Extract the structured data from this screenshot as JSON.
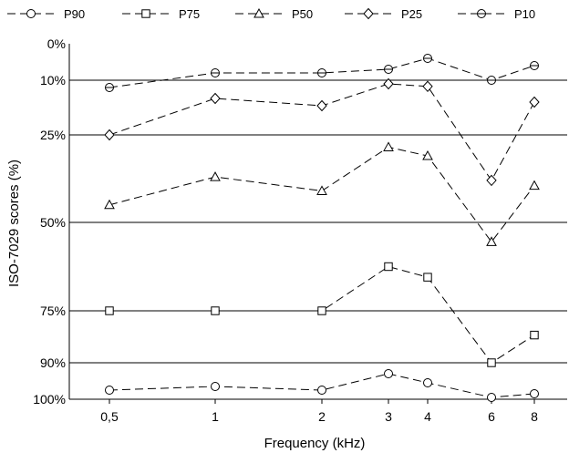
{
  "chart_data": {
    "type": "line",
    "xlabel": "Frequency (kHz)",
    "ylabel": "ISO-7029 scores (%)",
    "categories": [
      "0,5",
      "1",
      "2",
      "3",
      "4",
      "6",
      "8"
    ],
    "y_tick_labels": [
      "0%",
      "10%",
      "25%",
      "50%",
      "75%",
      "90%",
      "100%"
    ],
    "y_axis_note": "percentile scale; horizontal lines at 10%, 25%, 50%, 75%, 90%",
    "legend_position": "top",
    "grid": "horizontal",
    "series": [
      {
        "name": "P90",
        "marker": "circle",
        "values": [
          97.5,
          96.5,
          97.5,
          93,
          95.5,
          99.5,
          98.5
        ]
      },
      {
        "name": "P75",
        "marker": "square",
        "values": [
          75,
          75,
          75,
          62.5,
          65.5,
          90,
          82
        ]
      },
      {
        "name": "P50",
        "marker": "triangle",
        "values": [
          45,
          37,
          41,
          28.5,
          31,
          55.5,
          39.5
        ]
      },
      {
        "name": "P25",
        "marker": "diamond",
        "values": [
          25,
          15,
          17,
          11,
          11.7,
          38,
          16
        ]
      },
      {
        "name": "P10",
        "marker": "hexagon",
        "values": [
          12,
          8,
          8,
          7,
          4,
          10,
          6
        ]
      }
    ]
  }
}
